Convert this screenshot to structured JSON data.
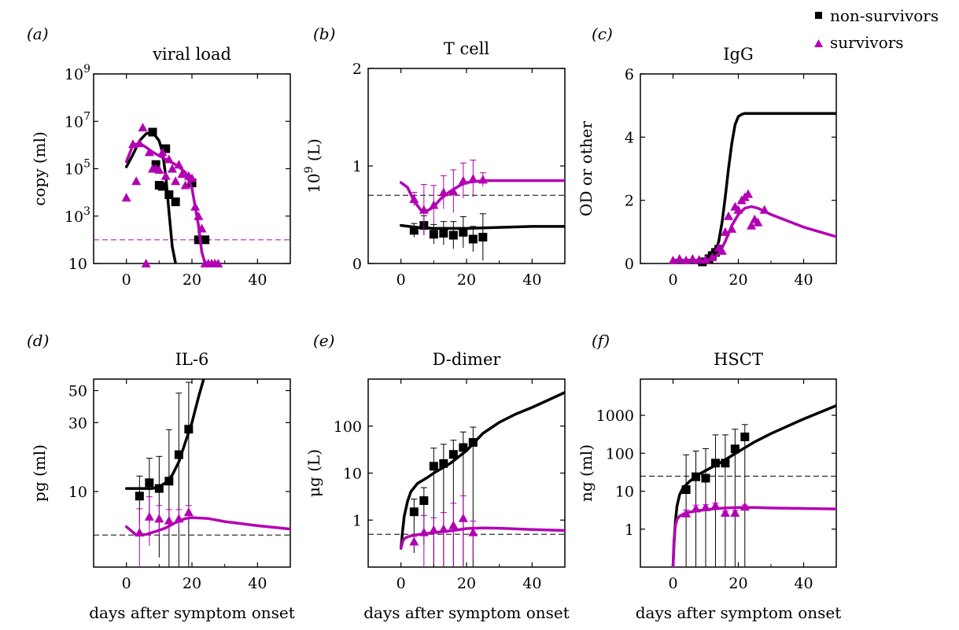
{
  "legend": [
    {
      "label": "non-survivors",
      "marker": "square",
      "color": "#000000"
    },
    {
      "label": "survivors",
      "marker": "triangle",
      "color": "#b300b3"
    }
  ],
  "colors": {
    "non_survivors": "#000000",
    "survivors": "#b300b3"
  },
  "chart_data": [
    {
      "panel": "(a)",
      "type": "line",
      "title": "viral load",
      "xlabel": "",
      "ylabel": "copy (ml)",
      "xlim": [
        -10,
        50
      ],
      "ylim": [
        10,
        1000000000
      ],
      "yscale": "log",
      "xticks": [
        0,
        20,
        40
      ],
      "yticks": [
        {
          "v": 10,
          "label": "10"
        },
        {
          "v": 1000,
          "label": "10",
          "sup": "3"
        },
        {
          "v": 100000,
          "label": "10",
          "sup": "5"
        },
        {
          "v": 10000000,
          "label": "10",
          "sup": "7"
        },
        {
          "v": 1000000000,
          "label": "10",
          "sup": "9"
        }
      ],
      "hlines": [
        {
          "y": 100,
          "color": "#b300b3"
        }
      ],
      "series": [
        {
          "name": "non-survivors",
          "kind": "curve",
          "color": "#000000",
          "x": [
            0,
            2,
            4,
            6,
            8,
            10,
            11,
            12,
            13,
            14,
            15
          ],
          "y": [
            120000,
            400000,
            1500000,
            3000000,
            3500000,
            1500000,
            500000,
            50000,
            1500,
            50,
            10
          ]
        },
        {
          "name": "non-survivors",
          "kind": "points",
          "color": "#000000",
          "x": [
            8,
            9,
            10,
            11,
            12,
            13,
            15,
            20,
            22,
            24
          ],
          "y": [
            3500000,
            150000,
            20000,
            18000,
            700000,
            8000,
            4000,
            25000,
            100,
            100
          ]
        },
        {
          "name": "survivors",
          "kind": "curve",
          "color": "#b300b3",
          "x": [
            0,
            2,
            4,
            6,
            8,
            10,
            12,
            14,
            16,
            18,
            20,
            22,
            23,
            24
          ],
          "y": [
            200000,
            1000000,
            1200000,
            800000,
            500000,
            350000,
            250000,
            180000,
            120000,
            70000,
            15000,
            400,
            30,
            10
          ]
        },
        {
          "name": "survivors",
          "kind": "points",
          "color": "#b300b3",
          "x": [
            0,
            2,
            3,
            4,
            5,
            6,
            7,
            8,
            9,
            10,
            11,
            12,
            13,
            14,
            15,
            16,
            17,
            18,
            19,
            20,
            21,
            22,
            23,
            24,
            25,
            26,
            27,
            28
          ],
          "y": [
            6000,
            1100000,
            30000,
            1200000,
            5500000,
            10,
            500000,
            100000,
            100000,
            90000,
            500000,
            50000,
            250000,
            100000,
            30000,
            150000,
            60000,
            20000,
            50000,
            40000,
            2500,
            1000,
            300,
            10,
            10,
            10,
            10,
            10
          ]
        }
      ]
    },
    {
      "panel": "(b)",
      "type": "line",
      "title": "T cell",
      "xlabel": "",
      "ylabel": "10",
      "ylabel_sup": "9",
      "ylabel_rest": " (L)",
      "xlim": [
        -10,
        50
      ],
      "ylim": [
        0,
        2
      ],
      "yscale": "linear",
      "xticks": [
        0,
        20,
        40
      ],
      "yticks": [
        {
          "v": 0,
          "label": "0"
        },
        {
          "v": 1,
          "label": "1"
        },
        {
          "v": 2,
          "label": "2"
        }
      ],
      "hlines": [
        {
          "y": 0.7,
          "color": "#000000"
        }
      ],
      "series": [
        {
          "name": "non-survivors",
          "kind": "curve",
          "color": "#000000",
          "x": [
            0,
            5,
            10,
            20,
            30,
            40,
            50
          ],
          "y": [
            0.39,
            0.37,
            0.36,
            0.36,
            0.37,
            0.38,
            0.38
          ]
        },
        {
          "name": "non-survivors",
          "kind": "points",
          "color": "#000000",
          "x": [
            4,
            7,
            10,
            13,
            16,
            19,
            22,
            25
          ],
          "y": [
            0.34,
            0.39,
            0.3,
            0.31,
            0.29,
            0.32,
            0.25,
            0.27
          ],
          "err": [
            0.07,
            0.1,
            0.1,
            0.12,
            0.14,
            0.16,
            0.13,
            0.24
          ]
        },
        {
          "name": "survivors",
          "kind": "curve",
          "color": "#b300b3",
          "x": [
            0,
            2,
            4,
            6,
            8,
            10,
            12,
            15,
            18,
            20,
            25,
            30,
            40,
            50
          ],
          "y": [
            0.83,
            0.78,
            0.64,
            0.55,
            0.54,
            0.58,
            0.66,
            0.74,
            0.8,
            0.83,
            0.85,
            0.85,
            0.85,
            0.85
          ]
        },
        {
          "name": "survivors",
          "kind": "points",
          "color": "#b300b3",
          "x": [
            4,
            7,
            10,
            13,
            16,
            19,
            22,
            25
          ],
          "y": [
            0.66,
            0.55,
            0.6,
            0.73,
            0.74,
            0.85,
            0.87,
            0.86
          ],
          "err": [
            0.07,
            0.26,
            0.2,
            0.17,
            0.22,
            0.18,
            0.19,
            0.07
          ]
        }
      ]
    },
    {
      "panel": "(c)",
      "type": "line",
      "title": "IgG",
      "xlabel": "",
      "ylabel": "OD or other",
      "xlim": [
        -10,
        50
      ],
      "ylim": [
        0,
        6
      ],
      "yscale": "linear",
      "xticks": [
        0,
        20,
        40
      ],
      "yticks": [
        {
          "v": 0,
          "label": "0"
        },
        {
          "v": 2,
          "label": "2"
        },
        {
          "v": 4,
          "label": "4"
        },
        {
          "v": 6,
          "label": "6"
        }
      ],
      "hlines": [],
      "series": [
        {
          "name": "non-survivors",
          "kind": "curve",
          "color": "#000000",
          "x": [
            0,
            8,
            10,
            12,
            13,
            14,
            15,
            16,
            17,
            18,
            19,
            20,
            21,
            22,
            30,
            40,
            50
          ],
          "y": [
            0.1,
            0.1,
            0.12,
            0.2,
            0.35,
            0.7,
            1.3,
            2.1,
            3.0,
            3.8,
            4.4,
            4.65,
            4.72,
            4.75,
            4.75,
            4.75,
            4.75
          ]
        },
        {
          "name": "non-survivors",
          "kind": "points",
          "color": "#000000",
          "x": [
            9,
            11,
            12,
            13,
            14
          ],
          "y": [
            0.05,
            0.15,
            0.25,
            0.35,
            0.45
          ]
        },
        {
          "name": "survivors",
          "kind": "curve",
          "color": "#b300b3",
          "x": [
            0,
            10,
            12,
            14,
            16,
            18,
            20,
            22,
            24,
            26,
            30,
            40,
            50
          ],
          "y": [
            0.08,
            0.08,
            0.15,
            0.3,
            0.7,
            1.2,
            1.55,
            1.75,
            1.8,
            1.75,
            1.55,
            1.15,
            0.85
          ]
        },
        {
          "name": "survivors",
          "kind": "points",
          "color": "#b300b3",
          "x": [
            0,
            2,
            4,
            6,
            8,
            10,
            12,
            14,
            15,
            16,
            17,
            18,
            19,
            20,
            21,
            22,
            23,
            24,
            25,
            26,
            28
          ],
          "y": [
            0.1,
            0.15,
            0.1,
            0.15,
            0.12,
            0.12,
            0.2,
            0.5,
            0.4,
            1.0,
            1.5,
            1.1,
            1.8,
            1.7,
            2.0,
            2.1,
            2.2,
            1.2,
            1.4,
            1.3,
            1.7
          ]
        }
      ]
    },
    {
      "panel": "(d)",
      "type": "line",
      "title": "IL-6",
      "xlabel": "days after symptom onset",
      "ylabel": "pg (ml)",
      "xlim": [
        -10,
        50
      ],
      "ylim": [
        3,
        60
      ],
      "yscale": "log",
      "xticks": [
        0,
        20,
        40
      ],
      "yticks": [
        {
          "v": 10,
          "label": "10"
        },
        {
          "v": 30,
          "label": "30"
        },
        {
          "v": 50,
          "label": "50"
        }
      ],
      "hlines": [
        {
          "y": 5,
          "color": "#000000"
        }
      ],
      "series": [
        {
          "name": "non-survivors",
          "kind": "curve",
          "color": "#000000",
          "x": [
            0,
            4,
            8,
            10,
            12,
            14,
            16,
            18,
            20,
            22,
            24
          ],
          "y": [
            10.5,
            10.5,
            10.5,
            10.8,
            11.5,
            13,
            16,
            22,
            30,
            45,
            65
          ]
        },
        {
          "name": "non-survivors",
          "kind": "points",
          "color": "#000000",
          "x": [
            4,
            7,
            10,
            13,
            16,
            19
          ],
          "y": [
            9.3,
            11.5,
            10.5,
            11.8,
            18,
            27
          ],
          "err": [
            3.5,
            5.5,
            7,
            15,
            30,
            30
          ]
        },
        {
          "name": "survivors",
          "kind": "curve",
          "color": "#b300b3",
          "x": [
            0,
            3,
            6,
            9,
            12,
            15,
            18,
            20,
            25,
            30,
            40,
            50
          ],
          "y": [
            5.7,
            5.0,
            5.05,
            5.3,
            5.6,
            6.1,
            6.5,
            6.6,
            6.5,
            6.2,
            5.8,
            5.5
          ]
        },
        {
          "name": "survivors",
          "kind": "points",
          "color": "#b300b3",
          "x": [
            4,
            7,
            10,
            13,
            16,
            19
          ],
          "y": [
            5.2,
            6.7,
            6.5,
            6.3,
            6.5,
            7.2
          ],
          "err": [
            2.4,
            2.5,
            1.5,
            1.2,
            1.0,
            0.8
          ]
        }
      ]
    },
    {
      "panel": "(e)",
      "type": "line",
      "title": "D-dimer",
      "xlabel": "days after symptom onset",
      "ylabel": "μg (L)",
      "xlim": [
        -10,
        50
      ],
      "ylim": [
        0.1,
        1000
      ],
      "yscale": "log",
      "xticks": [
        0,
        20,
        40
      ],
      "yticks": [
        {
          "v": 1,
          "label": "1"
        },
        {
          "v": 10,
          "label": "10"
        },
        {
          "v": 100,
          "label": "100"
        }
      ],
      "hlines": [
        {
          "y": 0.5,
          "color": "#000000"
        }
      ],
      "series": [
        {
          "name": "non-survivors",
          "kind": "curve",
          "color": "#000000",
          "x": [
            0,
            0.5,
            1,
            2,
            3,
            5,
            8,
            10,
            15,
            20,
            25,
            30,
            35,
            40,
            45,
            50
          ],
          "y": [
            0.25,
            0.6,
            1.2,
            2.5,
            4,
            6,
            8,
            10,
            16,
            30,
            70,
            120,
            180,
            250,
            360,
            520
          ]
        },
        {
          "name": "non-survivors",
          "kind": "points",
          "color": "#000000",
          "x": [
            4,
            7,
            10,
            13,
            16,
            19,
            22
          ],
          "y": [
            1.5,
            2.6,
            14,
            16,
            25,
            35,
            45
          ],
          "err": [
            1.3,
            2.3,
            20,
            25,
            25,
            40,
            50
          ]
        },
        {
          "name": "survivors",
          "kind": "curve",
          "color": "#b300b3",
          "x": [
            0,
            0.5,
            1,
            2,
            4,
            8,
            12,
            16,
            20,
            25,
            30,
            40,
            50
          ],
          "y": [
            0.25,
            0.35,
            0.4,
            0.44,
            0.48,
            0.52,
            0.56,
            0.6,
            0.66,
            0.68,
            0.67,
            0.63,
            0.6
          ]
        },
        {
          "name": "survivors",
          "kind": "points",
          "color": "#b300b3",
          "x": [
            4,
            7,
            10,
            13,
            16,
            19,
            22
          ],
          "y": [
            0.35,
            0.55,
            0.62,
            0.65,
            0.78,
            1.1,
            0.55
          ],
          "err": [
            0.1,
            0.7,
            0.5,
            0.8,
            1.5,
            2.2,
            0.4
          ]
        }
      ]
    },
    {
      "panel": "(f)",
      "type": "line",
      "title": "HSCT",
      "xlabel": "days after symptom onset",
      "ylabel": "ng (ml)",
      "xlim": [
        -10,
        50
      ],
      "ylim": [
        0.1,
        9000
      ],
      "yscale": "log",
      "xticks": [
        0,
        20,
        40
      ],
      "yticks": [
        {
          "v": 1,
          "label": "1"
        },
        {
          "v": 10,
          "label": "10"
        },
        {
          "v": 100,
          "label": "100"
        },
        {
          "v": 1000,
          "label": "1000"
        }
      ],
      "hlines": [
        {
          "y": 25,
          "color": "#000000"
        }
      ],
      "series": [
        {
          "name": "non-survivors",
          "kind": "curve",
          "color": "#000000",
          "x": [
            0,
            0.3,
            0.7,
            1.2,
            2,
            3,
            5,
            8,
            10,
            15,
            20,
            25,
            30,
            40,
            50
          ],
          "y": [
            0.1,
            0.4,
            1.5,
            4,
            8,
            12,
            18,
            28,
            35,
            60,
            110,
            200,
            330,
            800,
            1800
          ]
        },
        {
          "name": "non-survivors",
          "kind": "points",
          "color": "#000000",
          "x": [
            4,
            7,
            10,
            13,
            16,
            19,
            22
          ],
          "y": [
            11,
            24,
            22,
            55,
            55,
            130,
            270
          ],
          "err": [
            80,
            90,
            110,
            250,
            250,
            300,
            300
          ]
        },
        {
          "name": "survivors",
          "kind": "curve",
          "color": "#b300b3",
          "x": [
            0,
            0.3,
            0.7,
            1.2,
            2,
            4,
            8,
            12,
            16,
            20,
            25,
            30,
            40,
            50
          ],
          "y": [
            0.1,
            0.5,
            1.2,
            1.8,
            2.2,
            2.7,
            3.1,
            3.4,
            3.6,
            3.7,
            3.7,
            3.6,
            3.5,
            3.4
          ]
        },
        {
          "name": "survivors",
          "kind": "points",
          "color": "#b300b3",
          "x": [
            4,
            7,
            10,
            13,
            16,
            19,
            22
          ],
          "y": [
            2.6,
            3.5,
            3.8,
            4.2,
            2.7,
            2.7,
            3.9
          ],
          "err": [
            0.6,
            0.8,
            0.6,
            0.6,
            0.3,
            0.4,
            0.4
          ]
        }
      ]
    }
  ]
}
